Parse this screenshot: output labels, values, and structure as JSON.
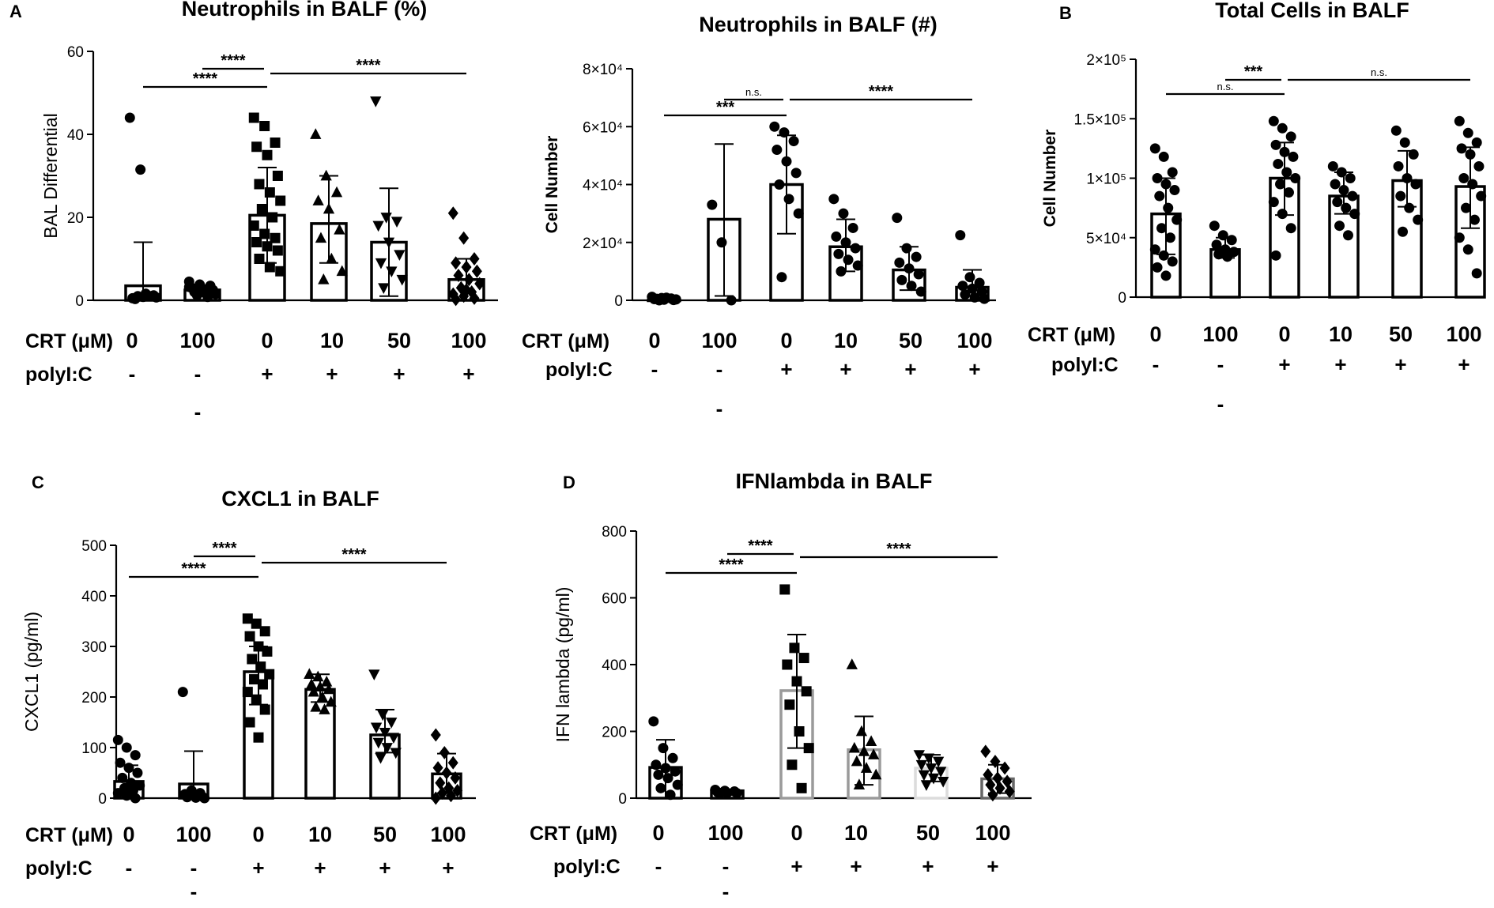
{
  "figure": {
    "condition_labels": {
      "crt": "CRT (μM)",
      "polyic": "polyI:C"
    },
    "crt_doses": [
      "0",
      "100",
      "0",
      "10",
      "50",
      "100"
    ],
    "polyic_signs": [
      "-",
      "-",
      "+",
      "+",
      "+",
      "+"
    ],
    "extra_dash": "-"
  },
  "chart_data": [
    {
      "id": "A1",
      "panel_label": "A",
      "type": "bar",
      "title": "Neutrophils in  BALF (%)",
      "ylabel": "BAL Differential",
      "ylim": [
        0,
        60
      ],
      "yticks": [
        0,
        20,
        40,
        60
      ],
      "ytick_labels": [
        "0",
        "20",
        "40",
        "60"
      ],
      "categories": [
        "0 / -",
        "100 / -",
        "0 / +",
        "10 / +",
        "50 / +",
        "100 / +"
      ],
      "values": [
        3.5,
        2.5,
        20.5,
        18.5,
        14,
        5
      ],
      "err_upper": [
        14,
        3.5,
        32,
        30,
        27,
        10
      ],
      "err_lower": [
        0,
        1.2,
        9,
        9,
        1,
        0
      ],
      "markers": [
        "circle",
        "circle",
        "square",
        "triangle",
        "triangle-down",
        "diamond"
      ],
      "points": [
        [
          44,
          31.5,
          1,
          0.5,
          0.8,
          1.2,
          0.3,
          1.6,
          0.7,
          1
        ],
        [
          4.5,
          3.8,
          3.5,
          3,
          2.8,
          2.5,
          2,
          1.8,
          1.5,
          1.2,
          0.8,
          3.2
        ],
        [
          44,
          42,
          38,
          37,
          35,
          30,
          28,
          26,
          24,
          22,
          20,
          18,
          16,
          15,
          14,
          13,
          12,
          10,
          8,
          7
        ],
        [
          40,
          30,
          26,
          24,
          22,
          17,
          15,
          10,
          7,
          5
        ],
        [
          48,
          20,
          19,
          18,
          14,
          11,
          9,
          7,
          5,
          3
        ],
        [
          21,
          15,
          10,
          9,
          8,
          7,
          6,
          5,
          4,
          3,
          2,
          1.5,
          1,
          0.5,
          0.2,
          2.5
        ]
      ],
      "significance": [
        {
          "from": 0,
          "to": 2,
          "label": "****"
        },
        {
          "from": 1,
          "to": 2,
          "label": "****"
        },
        {
          "from": 2,
          "to": 5,
          "label": "****"
        }
      ],
      "extra_dash_under": 1
    },
    {
      "id": "A2",
      "panel_label": "",
      "type": "bar",
      "title": "Neutrophils in BALF (#)",
      "ylabel": "Cell Number",
      "ylim": [
        0,
        80000
      ],
      "yticks": [
        0,
        20000,
        40000,
        60000,
        80000
      ],
      "ytick_labels": [
        "0",
        "2×10⁴",
        "4×10⁴",
        "6×10⁴",
        "8×10⁴"
      ],
      "categories": [
        "0 / -",
        "100 / -",
        "0 / +",
        "10 / +",
        "50 / +",
        "100 / +"
      ],
      "values": [
        0,
        28000,
        40000,
        18500,
        10500,
        4500
      ],
      "err_upper": [
        400,
        54000,
        57000,
        28000,
        18500,
        10500
      ],
      "err_lower": [
        0,
        1500,
        23000,
        10000,
        3500,
        0
      ],
      "markers": [
        "circle",
        "circle",
        "circle",
        "circle",
        "circle",
        "circle"
      ],
      "points": [
        [
          1200,
          800,
          600,
          400,
          200,
          100,
          500,
          900,
          300,
          0
        ],
        [
          33000,
          20000,
          0
        ],
        [
          60000,
          58000,
          55000,
          52000,
          48000,
          44000,
          40000,
          35000,
          30000,
          8000
        ],
        [
          35000,
          30000,
          25000,
          22000,
          20000,
          18000,
          16000,
          14000,
          12000,
          10000
        ],
        [
          28500,
          18000,
          15000,
          13000,
          11000,
          9000,
          7000,
          5000,
          3000
        ],
        [
          22500,
          8000,
          6000,
          5000,
          4000,
          3000,
          2000,
          1000,
          500
        ]
      ],
      "significance": [
        {
          "from": 0,
          "to": 2,
          "label": "***"
        },
        {
          "from": 1,
          "to": 2,
          "label": "n.s."
        },
        {
          "from": 2,
          "to": 5,
          "label": "****"
        }
      ],
      "extra_dash_under": 1
    },
    {
      "id": "B",
      "panel_label": "B",
      "type": "bar",
      "title": "Total Cells in BALF",
      "ylabel": "Cell Number",
      "ylim": [
        0,
        200000
      ],
      "yticks": [
        0,
        50000,
        100000,
        150000,
        200000
      ],
      "ytick_labels": [
        "0",
        "5×10⁴",
        "1×10⁵",
        "1.5×10⁵",
        "2×10⁵"
      ],
      "categories": [
        "0 / -",
        "100 / -",
        "0 / +",
        "10 / +",
        "50 / +",
        "100 / +"
      ],
      "values": [
        70000,
        40000,
        100000,
        85000,
        98000,
        93000
      ],
      "err_upper": [
        100000,
        50000,
        130000,
        105000,
        123000,
        126000
      ],
      "err_lower": [
        36000,
        33000,
        69000,
        70000,
        76000,
        58000
      ],
      "markers": [
        "circle",
        "circle",
        "circle",
        "circle",
        "circle",
        "circle"
      ],
      "points": [
        [
          125000,
          118000,
          105000,
          100000,
          95000,
          90000,
          85000,
          75000,
          65000,
          58000,
          50000,
          40000,
          35000,
          30000,
          25000,
          18000
        ],
        [
          60000,
          52000,
          48000,
          44000,
          40000,
          38000,
          36000,
          34000
        ],
        [
          148000,
          142000,
          135000,
          128000,
          122000,
          118000,
          112000,
          105000,
          100000,
          95000,
          88000,
          80000,
          70000,
          58000,
          35000
        ],
        [
          110000,
          105000,
          100000,
          95000,
          90000,
          85000,
          80000,
          75000,
          70000,
          60000,
          52000
        ],
        [
          140000,
          130000,
          120000,
          110000,
          100000,
          95000,
          85000,
          75000,
          65000,
          55000
        ],
        [
          148000,
          138000,
          130000,
          125000,
          120000,
          110000,
          100000,
          95000,
          85000,
          75000,
          65000,
          50000,
          40000,
          20000
        ]
      ],
      "significance": [
        {
          "from": 0,
          "to": 2,
          "label": "n.s."
        },
        {
          "from": 1,
          "to": 2,
          "label": "***"
        },
        {
          "from": 2,
          "to": 5,
          "label": "n.s."
        }
      ],
      "extra_dash_under": 1
    },
    {
      "id": "C",
      "panel_label": "C",
      "type": "bar",
      "title": "CXCL1 in BALF",
      "ylabel": "CXCL1 (pg/ml)",
      "ylim": [
        0,
        500
      ],
      "yticks": [
        0,
        100,
        200,
        300,
        400,
        500
      ],
      "ytick_labels": [
        "0",
        "100",
        "200",
        "300",
        "400",
        "500"
      ],
      "categories": [
        "0 / -",
        "100 / -",
        "0 / +",
        "10 / +",
        "50 / +",
        "100 / +"
      ],
      "values": [
        33,
        28,
        250,
        215,
        125,
        48
      ],
      "err_upper": [
        65,
        93,
        300,
        245,
        175,
        88
      ],
      "err_lower": [
        0,
        0,
        185,
        190,
        90,
        10
      ],
      "markers": [
        "circle",
        "circle",
        "square",
        "triangle",
        "triangle-down",
        "diamond"
      ],
      "points": [
        [
          115,
          100,
          85,
          70,
          60,
          50,
          40,
          30,
          25,
          20,
          15,
          10,
          5,
          0
        ],
        [
          210,
          15,
          10,
          8,
          5,
          3,
          2,
          1,
          0
        ],
        [
          355,
          345,
          330,
          320,
          300,
          290,
          275,
          260,
          245,
          235,
          225,
          210,
          195,
          175,
          150,
          120
        ],
        [
          245,
          240,
          230,
          225,
          220,
          215,
          210,
          200,
          190,
          180,
          175
        ],
        [
          245,
          165,
          150,
          140,
          130,
          120,
          110,
          100,
          90,
          80
        ],
        [
          125,
          90,
          70,
          60,
          50,
          40,
          30,
          20,
          15,
          10,
          5,
          0
        ]
      ],
      "significance": [
        {
          "from": 0,
          "to": 2,
          "label": "****"
        },
        {
          "from": 1,
          "to": 2,
          "label": "****"
        },
        {
          "from": 2,
          "to": 5,
          "label": "****"
        }
      ],
      "extra_dash_under": 1
    },
    {
      "id": "D",
      "panel_label": "D",
      "type": "bar",
      "title": "IFNlambda in BALF",
      "ylabel": "IFN lambda (pg/ml)",
      "ylim": [
        0,
        800
      ],
      "yticks": [
        0,
        200,
        400,
        600,
        800
      ],
      "ytick_labels": [
        "0",
        "200",
        "400",
        "600",
        "800"
      ],
      "categories": [
        "0 / -",
        "100 / -",
        "0 / +",
        "10 / +",
        "50 / +",
        "100 / +"
      ],
      "values": [
        92,
        22,
        322,
        145,
        90,
        58
      ],
      "err_upper": [
        175,
        25,
        490,
        245,
        130,
        100
      ],
      "err_lower": [
        0,
        18,
        150,
        40,
        50,
        15
      ],
      "markers": [
        "circle",
        "circle",
        "square",
        "triangle",
        "triangle-down",
        "diamond"
      ],
      "points": [
        [
          230,
          150,
          120,
          100,
          90,
          80,
          70,
          60,
          40,
          30,
          10
        ],
        [
          25,
          22,
          20,
          18,
          16,
          15,
          14
        ],
        [
          625,
          450,
          420,
          400,
          350,
          320,
          280,
          200,
          150,
          100,
          30
        ],
        [
          400,
          200,
          170,
          150,
          140,
          130,
          110,
          90,
          70,
          40
        ],
        [
          130,
          120,
          110,
          100,
          90,
          80,
          70,
          60,
          50,
          40
        ],
        [
          140,
          110,
          90,
          70,
          60,
          50,
          40,
          30,
          20,
          10
        ]
      ],
      "bar_colors": [
        "#000000",
        "#000000",
        "#9a9a9a",
        "#9a9a9a",
        "#dcdcdc",
        "#666666"
      ],
      "significance": [
        {
          "from": 0,
          "to": 2,
          "label": "****"
        },
        {
          "from": 1,
          "to": 2,
          "label": "****"
        },
        {
          "from": 2,
          "to": 5,
          "label": "****"
        }
      ],
      "extra_dash_under": 1
    }
  ]
}
